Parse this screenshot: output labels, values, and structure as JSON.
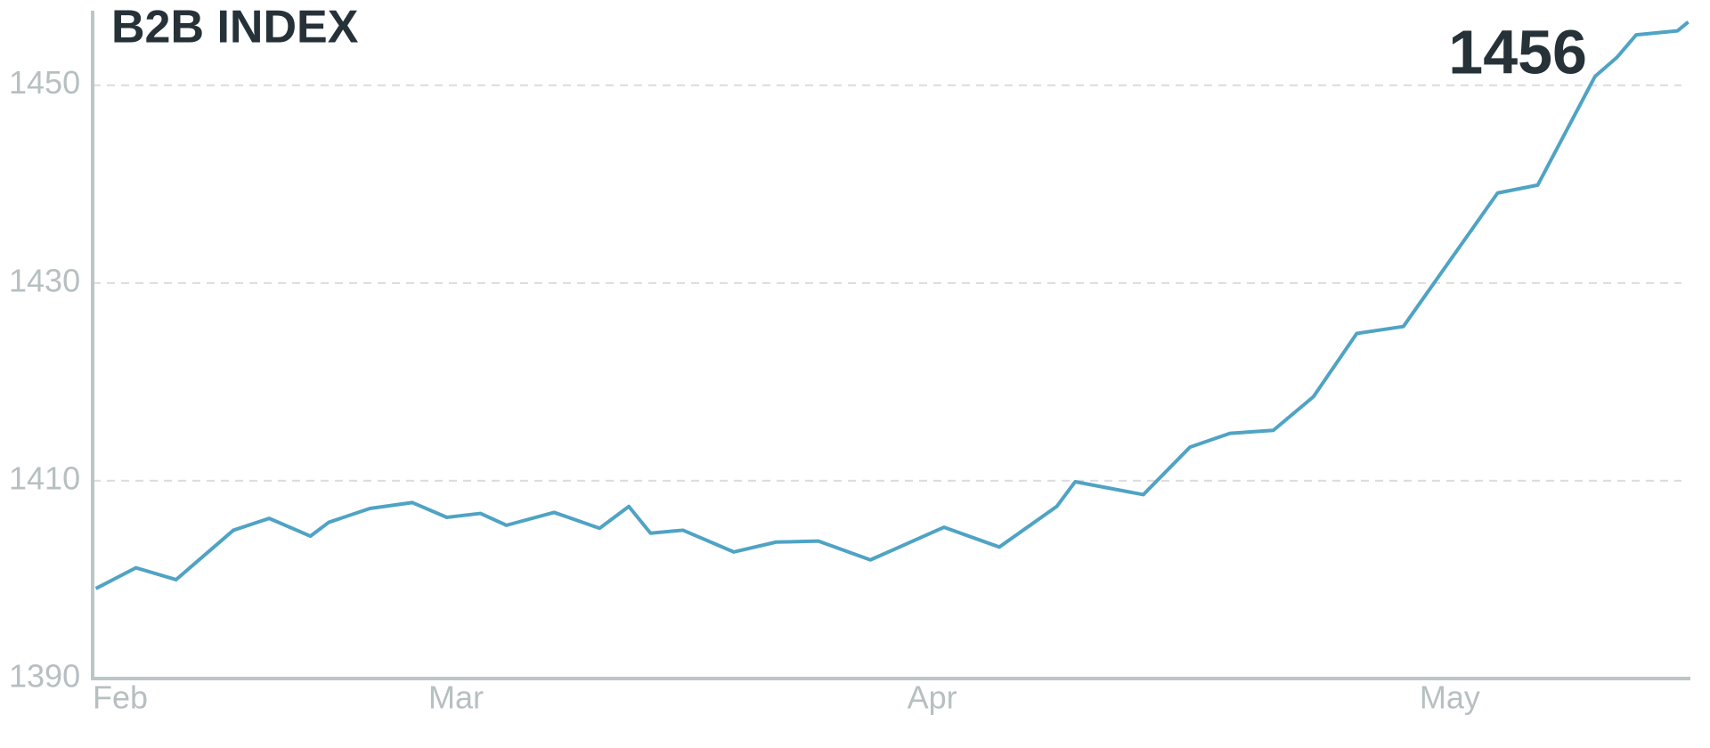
{
  "chart_data": {
    "type": "line",
    "title": "B2B INDEX",
    "annotation": "1456",
    "x": [
      0.3,
      4.0,
      7.7,
      13.0,
      16.3,
      20.1,
      21.8,
      25.6,
      29.5,
      32.7,
      35.8,
      38.2,
      42.6,
      46.8,
      49.5,
      51.5,
      54.5,
      59.2,
      63.1,
      67.0,
      71.8,
      78.6,
      83.7,
      89.0,
      90.7,
      97.0,
      101.3,
      105.0,
      109.0,
      112.7,
      116.7,
      121.0,
      129.7,
      133.4,
      138.7,
      140.7,
      142.5,
      146.3,
      147.3
    ],
    "series": [
      {
        "name": "B2B INDEX",
        "color": "#4fa3c4",
        "values": [
          1399.1,
          1401.2,
          1400.0,
          1405.0,
          1406.2,
          1404.4,
          1405.8,
          1407.2,
          1407.8,
          1406.3,
          1406.7,
          1405.5,
          1406.8,
          1405.2,
          1407.4,
          1404.7,
          1405.0,
          1402.8,
          1403.8,
          1403.9,
          1402.0,
          1405.3,
          1403.3,
          1407.4,
          1409.9,
          1408.6,
          1413.4,
          1414.8,
          1415.1,
          1418.5,
          1424.9,
          1425.6,
          1439.1,
          1439.9,
          1450.9,
          1452.8,
          1455.1,
          1455.5,
          1456.4
        ]
      }
    ],
    "xlim": [
      0,
      147.5
    ],
    "xticks": [
      {
        "value": 0,
        "label": "Feb"
      },
      {
        "value": 31,
        "label": "Mar"
      },
      {
        "value": 75.2,
        "label": "Apr"
      },
      {
        "value": 122.5,
        "label": "May"
      }
    ],
    "ylim": [
      1390,
      1457
    ],
    "yticks": [
      1390,
      1410,
      1430,
      1450
    ],
    "grid": true
  }
}
